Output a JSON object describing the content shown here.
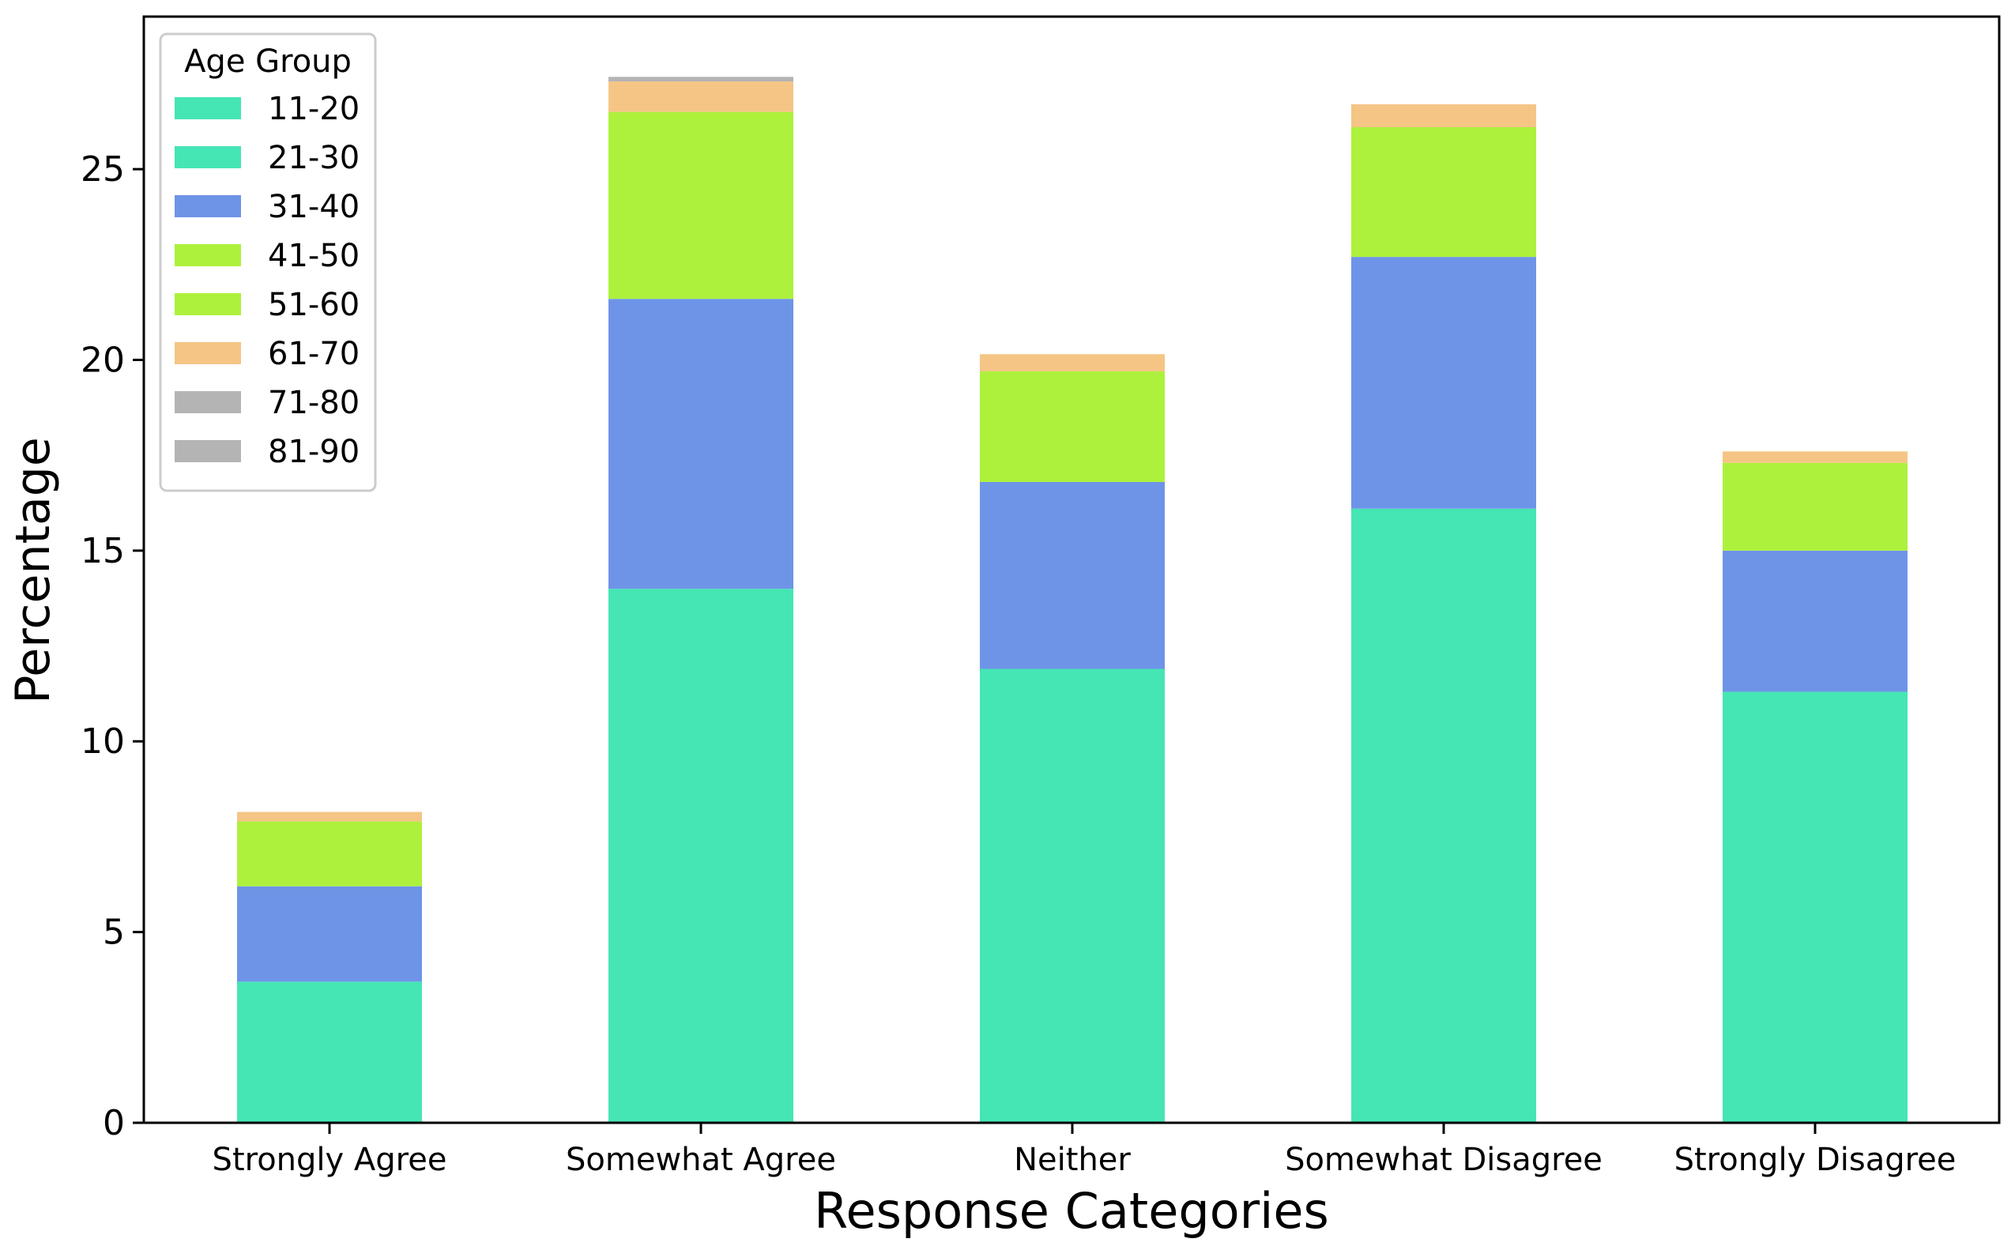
{
  "chart_data": {
    "type": "bar",
    "stacked": true,
    "title": "",
    "xlabel": "Response Categories",
    "ylabel": "Percentage",
    "ylim": [
      0,
      29
    ],
    "yticks": [
      0,
      5,
      10,
      15,
      20,
      25
    ],
    "grid": false,
    "categories": [
      "Strongly Agree",
      "Somewhat Agree",
      "Neither",
      "Somewhat Disagree",
      "Strongly Disagree"
    ],
    "legend": {
      "title": "Age Group",
      "position": "top-left"
    },
    "series": [
      {
        "name": "11-20",
        "color": "#45e5b4",
        "values": [
          0,
          0,
          0,
          0,
          0
        ]
      },
      {
        "name": "21-30",
        "color": "#45e5b4",
        "values": [
          3.7,
          14.0,
          11.9,
          16.1,
          11.3
        ]
      },
      {
        "name": "31-40",
        "color": "#6e94e8",
        "values": [
          2.5,
          7.6,
          4.9,
          6.6,
          3.7
        ]
      },
      {
        "name": "41-50",
        "color": "#adf13c",
        "values": [
          0,
          0,
          0,
          0,
          0
        ]
      },
      {
        "name": "51-60",
        "color": "#adf13c",
        "values": [
          1.7,
          4.9,
          2.9,
          3.4,
          2.3
        ]
      },
      {
        "name": "61-70",
        "color": "#f5c585",
        "values": [
          0.25,
          0.8,
          0.45,
          0.6,
          0.3
        ]
      },
      {
        "name": "71-80",
        "color": "#b4b4b4",
        "values": [
          0,
          0.12,
          0,
          0,
          0
        ]
      },
      {
        "name": "81-90",
        "color": "#b4b4b4",
        "values": [
          0,
          0,
          0,
          0,
          0
        ]
      }
    ]
  }
}
